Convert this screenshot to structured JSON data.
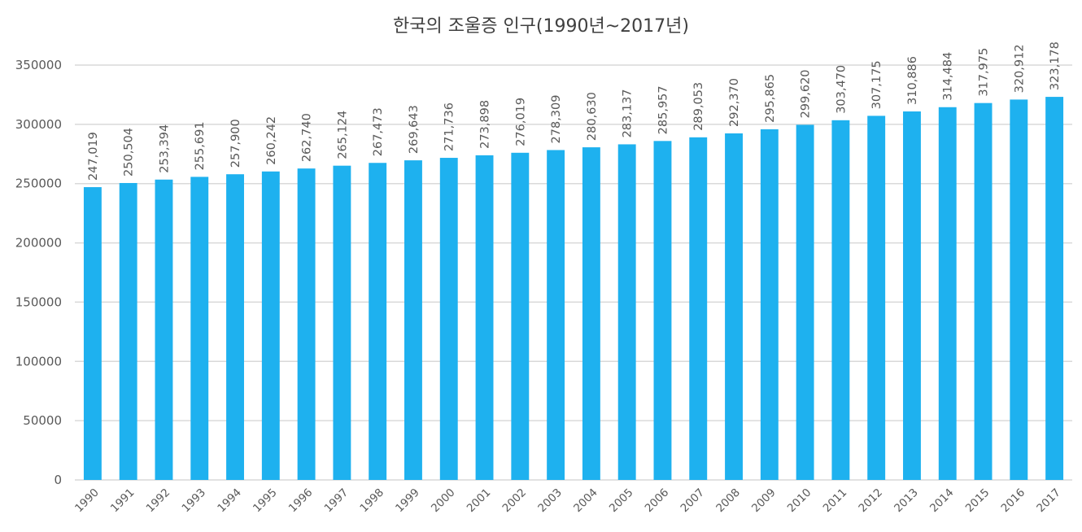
{
  "chart_data": {
    "type": "bar",
    "title": "한국의 조울증 인구(1990년~2017년)",
    "categories": [
      "1990",
      "1991",
      "1992",
      "1993",
      "1994",
      "1995",
      "1996",
      "1997",
      "1998",
      "1999",
      "2000",
      "2001",
      "2002",
      "2003",
      "2004",
      "2005",
      "2006",
      "2007",
      "2008",
      "2009",
      "2010",
      "2011",
      "2012",
      "2013",
      "2014",
      "2015",
      "2016",
      "2017"
    ],
    "values": [
      247019,
      250504,
      253394,
      255691,
      257900,
      260242,
      262740,
      265124,
      267473,
      269643,
      271736,
      273898,
      276019,
      278309,
      280630,
      283137,
      285957,
      289053,
      292370,
      295865,
      299620,
      303470,
      307175,
      310886,
      314484,
      317975,
      320912,
      323178
    ],
    "data_labels": [
      "247,019",
      "250,504",
      "253,394",
      "255,691",
      "257,900",
      "260,242",
      "262,740",
      "265,124",
      "267,473",
      "269,643",
      "271,736",
      "273,898",
      "276,019",
      "278,309",
      "280,630",
      "283,137",
      "285,957",
      "289,053",
      "292,370",
      "295,865",
      "299,620",
      "303,470",
      "307,175",
      "310,886",
      "314,484",
      "317,975",
      "320,912",
      "323,178"
    ],
    "y_ticks": [
      "0",
      "50000",
      "100000",
      "150000",
      "200000",
      "250000",
      "300000",
      "350000"
    ],
    "ylim": [
      0,
      350000
    ],
    "grid": true,
    "legend": "none",
    "bar_color": "#1EB1EF",
    "grid_color": "#D9D9D9"
  }
}
